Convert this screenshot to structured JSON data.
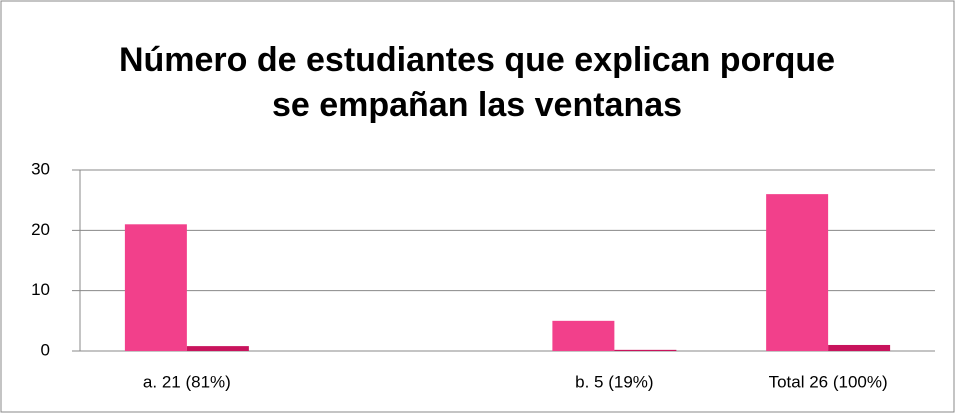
{
  "chart_data": {
    "type": "bar",
    "title": "Número de estudiantes que explican porque se empañan las ventanas",
    "categories": [
      "a. 21 (81%)",
      null,
      "b. 5 (19%)",
      "Total 26 (100%)"
    ],
    "series": [
      {
        "color": "#f2408b",
        "values": [
          21,
          null,
          5,
          26
        ]
      },
      {
        "color": "#c8135c",
        "values": [
          0.81,
          null,
          0.19,
          1
        ]
      }
    ],
    "ylim": [
      0,
      30
    ],
    "yticks": [
      0,
      10,
      20,
      30
    ],
    "grid": true
  }
}
